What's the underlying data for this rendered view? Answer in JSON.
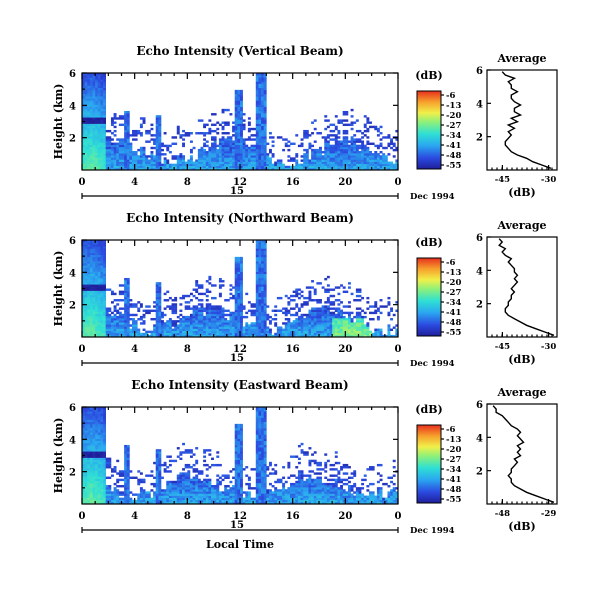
{
  "chart_data": [
    {
      "type": "heatmap",
      "title": "Echo Intensity (Vertical Beam)",
      "ylabel": "Height (km)",
      "xlim": [
        0,
        24
      ],
      "ylim": [
        0,
        6
      ],
      "xticks": [
        "0",
        "4",
        "8",
        "12",
        "16",
        "20",
        "0"
      ],
      "yticks": [
        "2",
        "4",
        "6"
      ],
      "date_day": "15",
      "date_label": "Dec 1994",
      "colorbar": {
        "unit": "(dB)",
        "ticks": [
          "-6",
          "-13",
          "-20",
          "-27",
          "-34",
          "-41",
          "-48",
          "-55"
        ],
        "range": [
          -55,
          -6
        ]
      },
      "profile": {
        "title": "Average",
        "xlabel": "(dB)",
        "xticks": [
          "-45",
          "-30"
        ],
        "xlim": [
          -50,
          -27
        ],
        "ylim": [
          0,
          6
        ],
        "yticks": [
          "2",
          "4",
          "6"
        ],
        "h": [
          0.1,
          0.3,
          0.5,
          0.7,
          0.9,
          1.1,
          1.3,
          1.5,
          1.7,
          1.9,
          2.1,
          2.3,
          2.5,
          2.7,
          2.9,
          3.1,
          3.3,
          3.5,
          3.7,
          3.9,
          4.1,
          4.3,
          4.5,
          4.7,
          4.9,
          5.1,
          5.3,
          5.5,
          5.7,
          5.9
        ],
        "db": [
          -29,
          -32,
          -35,
          -37,
          -40,
          -42,
          -43,
          -44,
          -44,
          -43,
          -42,
          -43,
          -41,
          -43,
          -40,
          -42,
          -39,
          -41,
          -41,
          -39,
          -41,
          -42,
          -42,
          -40,
          -42,
          -42,
          -43,
          -41,
          -44,
          -45
        ]
      }
    },
    {
      "type": "heatmap",
      "title": "Echo Intensity (Northward Beam)",
      "ylabel": "Height (km)",
      "xlim": [
        0,
        24
      ],
      "ylim": [
        0,
        6
      ],
      "xticks": [
        "0",
        "4",
        "8",
        "12",
        "16",
        "20",
        "0"
      ],
      "yticks": [
        "2",
        "4",
        "6"
      ],
      "date_day": "15",
      "date_label": "Dec 1994",
      "colorbar": {
        "unit": "(dB)",
        "ticks": [
          "-6",
          "-13",
          "-20",
          "-27",
          "-34",
          "-41",
          "-48",
          "-55"
        ],
        "range": [
          -55,
          -6
        ]
      },
      "profile": {
        "title": "Average",
        "xlabel": "(dB)",
        "xticks": [
          "-45",
          "-30"
        ],
        "xlim": [
          -50,
          -27
        ],
        "ylim": [
          0,
          6
        ],
        "yticks": [
          "2",
          "4",
          "6"
        ],
        "h": [
          0.1,
          0.3,
          0.5,
          0.7,
          0.9,
          1.1,
          1.3,
          1.5,
          1.7,
          1.9,
          2.1,
          2.3,
          2.5,
          2.7,
          2.9,
          3.1,
          3.3,
          3.5,
          3.7,
          3.9,
          4.1,
          4.3,
          4.5,
          4.7,
          4.9,
          5.1,
          5.3,
          5.5,
          5.7,
          5.9
        ],
        "db": [
          -28,
          -31,
          -34,
          -37,
          -39,
          -41,
          -43,
          -44,
          -44,
          -43,
          -43,
          -42,
          -42,
          -41,
          -42,
          -41,
          -40,
          -41,
          -40,
          -41,
          -41,
          -42,
          -43,
          -42,
          -44,
          -45,
          -44,
          -46,
          -45,
          -46
        ]
      }
    },
    {
      "type": "heatmap",
      "title": "Echo Intensity (Eastward Beam)",
      "ylabel": "Height (km)",
      "xlabel": "Local Time",
      "xlim": [
        0,
        24
      ],
      "ylim": [
        0,
        6
      ],
      "xticks": [
        "0",
        "4",
        "8",
        "12",
        "16",
        "20",
        "0"
      ],
      "yticks": [
        "2",
        "4",
        "6"
      ],
      "date_day": "15",
      "date_label": "Dec 1994",
      "colorbar": {
        "unit": "(dB)",
        "ticks": [
          "-6",
          "-13",
          "-20",
          "-27",
          "-34",
          "-41",
          "-48",
          "-55"
        ],
        "range": [
          -55,
          -6
        ]
      },
      "profile": {
        "title": "Average",
        "xlabel": "(dB)",
        "xticks": [
          "-48",
          "-29"
        ],
        "xlim": [
          -50,
          -27
        ],
        "ylim": [
          0,
          6
        ],
        "yticks": [
          "2",
          "4",
          "6"
        ],
        "h": [
          0.1,
          0.3,
          0.5,
          0.7,
          0.9,
          1.1,
          1.3,
          1.5,
          1.7,
          1.9,
          2.1,
          2.3,
          2.5,
          2.7,
          2.9,
          3.1,
          3.3,
          3.5,
          3.7,
          3.9,
          4.1,
          4.3,
          4.5,
          4.7,
          4.9,
          5.1,
          5.3,
          5.5,
          5.7,
          5.9
        ],
        "db": [
          -28,
          -31,
          -34,
          -37,
          -39,
          -41,
          -42,
          -42,
          -43,
          -42,
          -42,
          -41,
          -40,
          -41,
          -39,
          -40,
          -39,
          -40,
          -38,
          -39,
          -40,
          -39,
          -40,
          -42,
          -43,
          -44,
          -45,
          -47,
          -47,
          -48
        ]
      }
    }
  ]
}
